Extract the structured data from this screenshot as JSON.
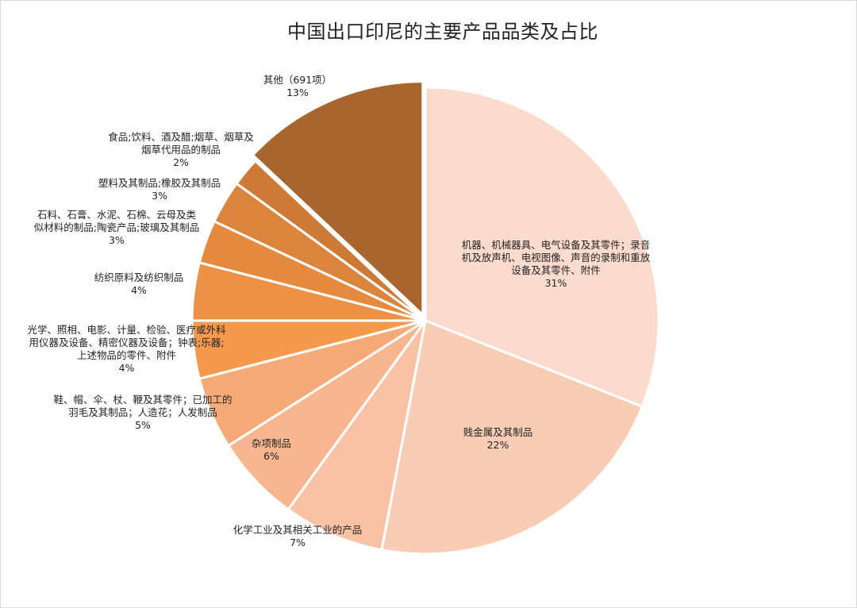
{
  "chart_data": {
    "type": "pie",
    "title": "中国出口印尼的主要产品品类及占比",
    "slices": [
      {
        "lines": [
          "机器、机械器具、电气设备及其零件；录音",
          "机及放声机、电视图像、声音的录制和重放",
          "设备及其零件、附件"
        ],
        "value": 31,
        "pct": "31%",
        "color": "#fbdbcd"
      },
      {
        "lines": [
          "贱金属及其制品"
        ],
        "value": 22,
        "pct": "22%",
        "color": "#f9cdb5"
      },
      {
        "lines": [
          "化学工业及其相关工业的产品"
        ],
        "value": 7,
        "pct": "7%",
        "color": "#f9c2a5"
      },
      {
        "lines": [
          "杂项制品"
        ],
        "value": 6,
        "pct": "6%",
        "color": "#f7b690"
      },
      {
        "lines": [
          "鞋、帽、伞、杖、鞭及其零件；已加工的",
          "羽毛及其制品；人造花；人发制品"
        ],
        "value": 5,
        "pct": "5%",
        "color": "#f6aa78"
      },
      {
        "lines": [
          "光学、照相、电影、计量、检验、医疗或外科",
          "用仪器及设备、精密仪器及设备；钟表;乐器;",
          "上述物品的零件、附件"
        ],
        "value": 4,
        "pct": "4%",
        "color": "#f59a4d"
      },
      {
        "lines": [
          "纺织原料及纺织制品"
        ],
        "value": 4,
        "pct": "4%",
        "color": "#ec9145"
      },
      {
        "lines": [
          "石料、石膏、水泥、石棉、云母及类",
          "似材料的制品;陶瓷产品;玻璃及其制品"
        ],
        "value": 3,
        "pct": "3%",
        "color": "#e48b40"
      },
      {
        "lines": [
          "塑料及其制品;橡胶及其制品"
        ],
        "value": 3,
        "pct": "3%",
        "color": "#db843c"
      },
      {
        "lines": [
          "食品;饮料、酒及醋;烟草、烟草及",
          "烟草代用品的制品"
        ],
        "value": 2,
        "pct": "2%",
        "color": "#cc7a36"
      },
      {
        "lines": [
          "其他（691项）"
        ],
        "value": 13,
        "pct": "13%",
        "color": "#a8652e"
      }
    ]
  }
}
